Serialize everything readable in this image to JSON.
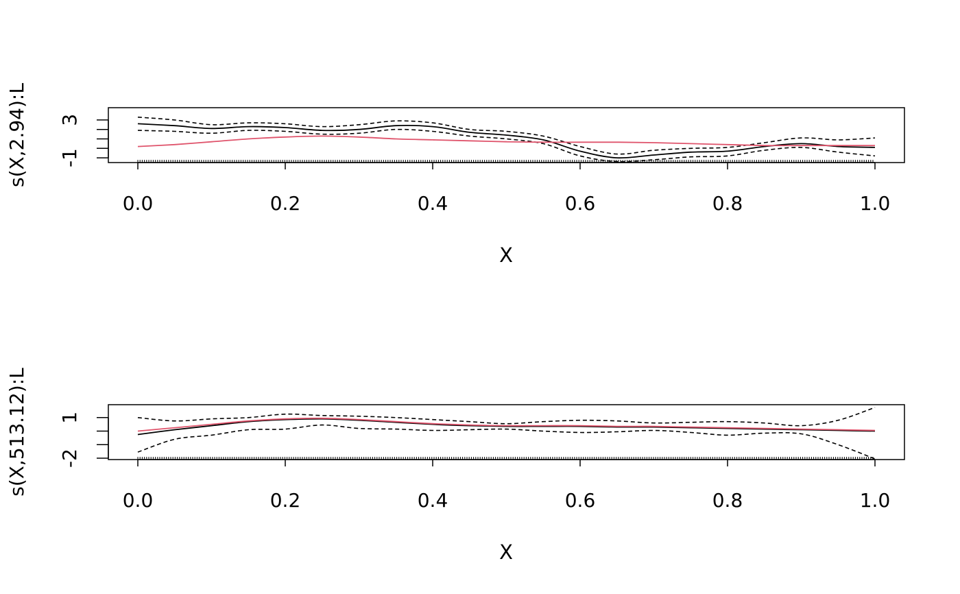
{
  "chart_data": [
    {
      "type": "line",
      "xlabel": "X",
      "ylabel": "s(X,2.94):L",
      "xlim": [
        -0.04,
        1.04
      ],
      "ylim": [
        -1.5,
        4.3
      ],
      "xticks": [
        0.0,
        0.2,
        0.4,
        0.6,
        0.8,
        1.0
      ],
      "xtick_labels": [
        "0.0",
        "0.2",
        "0.4",
        "0.6",
        "0.8",
        "1.0"
      ],
      "yticks": [
        -1,
        0,
        1,
        2,
        3
      ],
      "ytick_labels": [
        "-1",
        "3"
      ],
      "grid": false,
      "rug": true,
      "x": [
        0.0,
        0.05,
        0.1,
        0.15,
        0.2,
        0.25,
        0.3,
        0.35,
        0.4,
        0.45,
        0.5,
        0.55,
        0.6,
        0.65,
        0.7,
        0.75,
        0.8,
        0.85,
        0.9,
        0.95,
        1.0
      ],
      "series": [
        {
          "role": "estimate",
          "color": "#000000",
          "dash": "solid",
          "values": [
            2.6,
            2.4,
            2.1,
            2.3,
            2.2,
            1.9,
            2.0,
            2.4,
            2.3,
            1.7,
            1.4,
            0.9,
            -0.3,
            -1.0,
            -0.7,
            -0.4,
            -0.3,
            0.2,
            0.5,
            0.2,
            0.1
          ]
        },
        {
          "role": "upper",
          "color": "#000000",
          "dash": "dashed",
          "values": [
            3.3,
            3.0,
            2.5,
            2.7,
            2.6,
            2.3,
            2.5,
            2.9,
            2.7,
            2.0,
            1.8,
            1.3,
            0.2,
            -0.6,
            -0.2,
            0.0,
            0.1,
            0.6,
            1.1,
            0.9,
            1.1
          ]
        },
        {
          "role": "lower",
          "color": "#000000",
          "dash": "dashed",
          "values": [
            1.9,
            1.8,
            1.6,
            1.9,
            1.8,
            1.5,
            1.6,
            2.0,
            1.8,
            1.3,
            1.0,
            0.5,
            -0.8,
            -1.4,
            -1.2,
            -0.9,
            -0.8,
            -0.2,
            0.1,
            -0.4,
            -0.8
          ]
        },
        {
          "role": "true",
          "color": "#DF536B",
          "dash": "solid",
          "values": [
            0.2,
            0.4,
            0.7,
            1.0,
            1.2,
            1.3,
            1.2,
            1.0,
            0.9,
            0.8,
            0.7,
            0.65,
            0.65,
            0.65,
            0.6,
            0.5,
            0.4,
            0.3,
            0.3,
            0.3,
            0.3
          ]
        }
      ]
    },
    {
      "type": "line",
      "xlabel": "X",
      "ylabel": "s(X,513.12):L",
      "xlim": [
        -0.04,
        1.04
      ],
      "ylim": [
        -2.1,
        1.95
      ],
      "xticks": [
        0.0,
        0.2,
        0.4,
        0.6,
        0.8,
        1.0
      ],
      "xtick_labels": [
        "0.0",
        "0.2",
        "0.4",
        "0.6",
        "0.8",
        "1.0"
      ],
      "yticks": [
        -2,
        -1,
        0,
        1
      ],
      "ytick_labels": [
        "-2",
        "1"
      ],
      "grid": false,
      "rug": true,
      "x": [
        0.0,
        0.05,
        0.1,
        0.15,
        0.2,
        0.25,
        0.3,
        0.35,
        0.4,
        0.45,
        0.5,
        0.55,
        0.6,
        0.65,
        0.7,
        0.75,
        0.8,
        0.85,
        0.9,
        0.95,
        1.0
      ],
      "series": [
        {
          "role": "estimate",
          "color": "#000000",
          "dash": "solid",
          "values": [
            -0.25,
            0.1,
            0.4,
            0.7,
            0.85,
            0.9,
            0.8,
            0.65,
            0.5,
            0.4,
            0.35,
            0.35,
            0.35,
            0.3,
            0.3,
            0.25,
            0.2,
            0.15,
            0.1,
            0.05,
            0.0
          ]
        },
        {
          "role": "upper",
          "color": "#000000",
          "dash": "dashed",
          "values": [
            1.0,
            0.75,
            0.9,
            1.0,
            1.25,
            1.15,
            1.1,
            1.0,
            0.85,
            0.7,
            0.55,
            0.7,
            0.8,
            0.75,
            0.6,
            0.65,
            0.7,
            0.6,
            0.4,
            0.8,
            1.75
          ]
        },
        {
          "role": "lower",
          "color": "#000000",
          "dash": "dashed",
          "values": [
            -1.55,
            -0.6,
            -0.3,
            0.1,
            0.15,
            0.45,
            0.2,
            0.15,
            0.05,
            0.1,
            0.15,
            0.0,
            -0.1,
            -0.05,
            0.05,
            -0.1,
            -0.3,
            -0.15,
            -0.2,
            -1.0,
            -2.05
          ]
        },
        {
          "role": "true",
          "color": "#DF536B",
          "dash": "solid",
          "values": [
            0.0,
            0.25,
            0.5,
            0.75,
            0.9,
            0.95,
            0.85,
            0.7,
            0.55,
            0.45,
            0.4,
            0.4,
            0.4,
            0.35,
            0.35,
            0.3,
            0.25,
            0.2,
            0.15,
            0.1,
            0.05
          ]
        }
      ]
    }
  ]
}
